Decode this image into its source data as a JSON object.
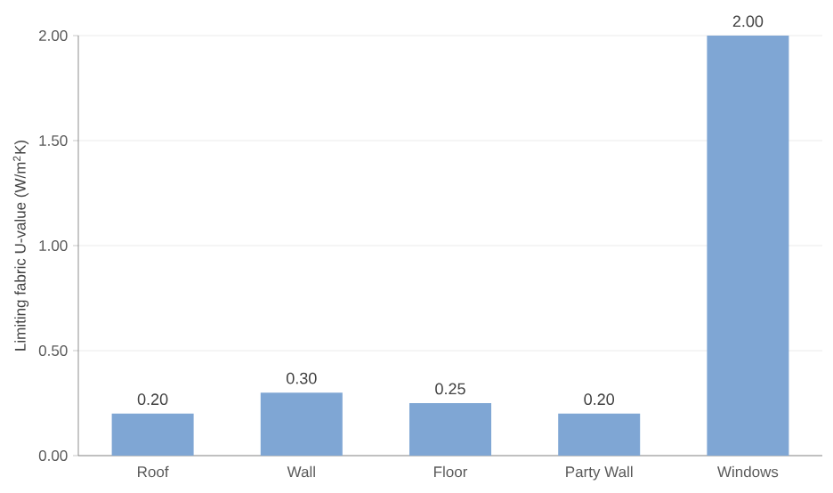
{
  "chart_data": {
    "type": "bar",
    "ylabel": "Limiting fabric U-value (W/m$^{2}$K)",
    "categories": [
      "Roof",
      "Wall",
      "Floor",
      "Party Wall",
      "Windows"
    ],
    "values": [
      0.2,
      0.3,
      0.25,
      0.2,
      2.0
    ],
    "value_labels": [
      "0.20",
      "0.30",
      "0.25",
      "0.20",
      "2.00"
    ],
    "color": "#7fa6d4",
    "ylim": [
      0,
      2
    ],
    "yticks": [
      {
        "value": 0,
        "label": "0.00"
      },
      {
        "value": 0.5,
        "label": "0.50"
      },
      {
        "value": 1,
        "label": "1.00"
      },
      {
        "value": 1.5,
        "label": "1.50"
      },
      {
        "value": 2,
        "label": "2.00"
      }
    ],
    "grid": "y"
  }
}
